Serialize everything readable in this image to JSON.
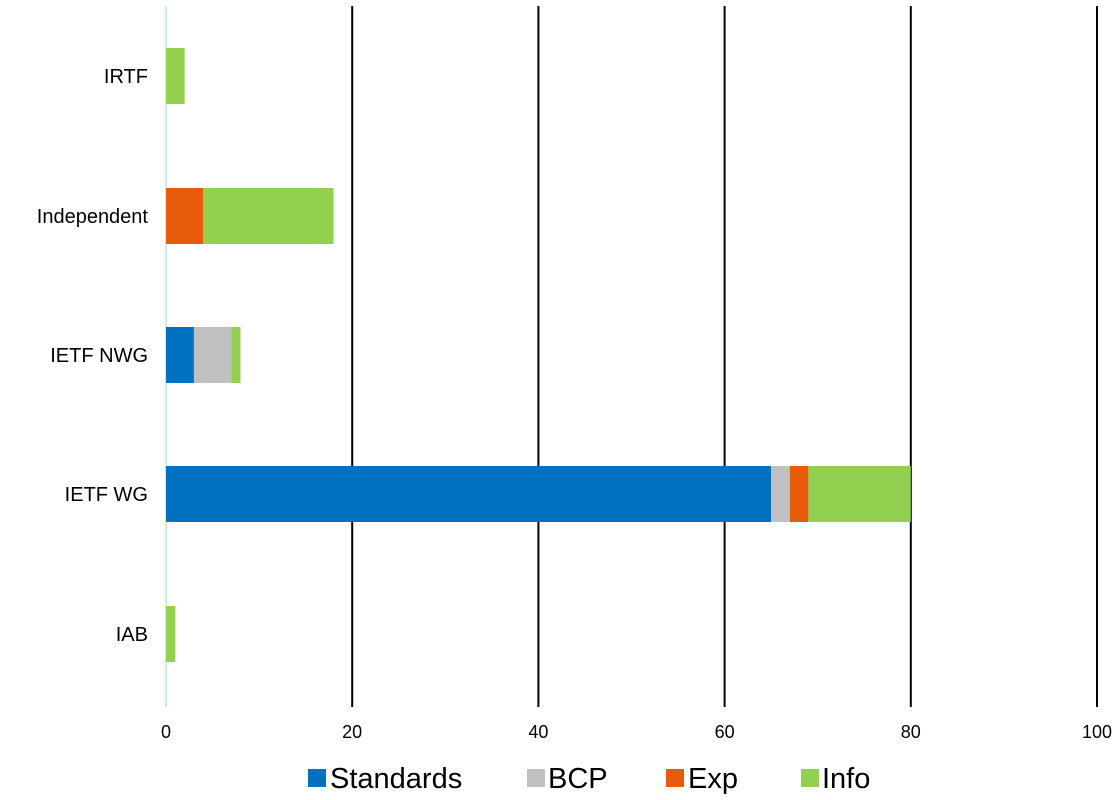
{
  "chart_data": {
    "type": "bar",
    "orientation": "horizontal",
    "stacked": true,
    "categories": [
      "IRTF",
      "Independent",
      "IETF NWG",
      "IETF WG",
      "IAB"
    ],
    "series": [
      {
        "name": "Standards",
        "color": "#0070C0",
        "values": [
          0,
          0,
          3,
          65,
          0
        ]
      },
      {
        "name": "BCP",
        "color": "#C0C0C0",
        "values": [
          0,
          0,
          4,
          2,
          0
        ]
      },
      {
        "name": "Exp",
        "color": "#E85A0C",
        "values": [
          0,
          4,
          0,
          2,
          0
        ]
      },
      {
        "name": "Info",
        "color": "#92D050",
        "values": [
          2,
          14,
          1,
          11,
          1
        ]
      }
    ],
    "xlim": [
      0,
      100
    ],
    "xticks": [
      "0",
      "20",
      "40",
      "60",
      "80",
      "100"
    ],
    "grid": "vertical",
    "legend": "bottom"
  }
}
